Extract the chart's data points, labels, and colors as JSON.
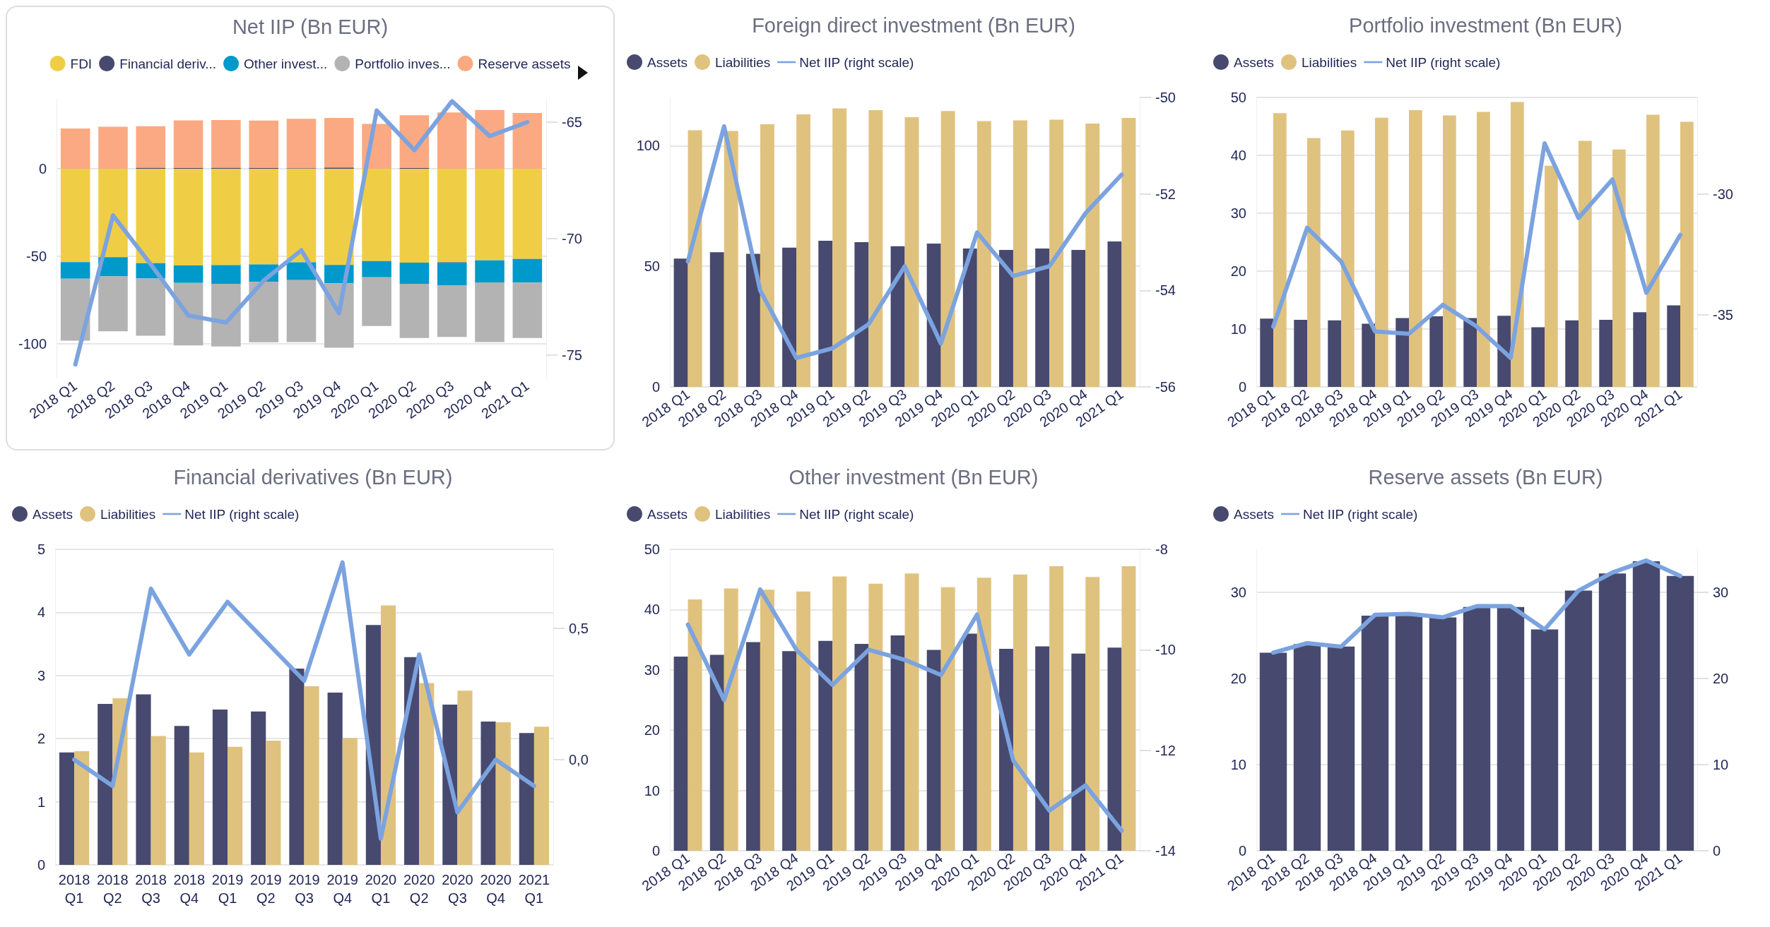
{
  "chart_data": [
    {
      "type": "bar",
      "title": "Net IIP (Bn EUR)",
      "stacked": true,
      "legend": "top",
      "grid": "y",
      "categories": [
        "2018 Q1",
        "2018 Q2",
        "2018 Q3",
        "2018 Q4",
        "2019 Q1",
        "2019 Q2",
        "2019 Q3",
        "2019 Q4",
        "2020 Q1",
        "2020 Q2",
        "2020 Q3",
        "2020 Q4",
        "2021 Q1"
      ],
      "series": [
        {
          "name": "FDI",
          "color": "#efce45",
          "values": [
            -53.4,
            -50.6,
            -54.0,
            -55.4,
            -55.2,
            -54.7,
            -53.5,
            -55.1,
            -52.8,
            -53.7,
            -53.5,
            -52.4,
            -51.6
          ]
        },
        {
          "name": "Financial deriv...",
          "color": "#474a6e",
          "values": [
            0.0,
            null,
            0.65,
            0.4,
            0.6,
            0.45,
            0.3,
            0.75,
            null,
            0.4,
            -0.2,
            0.0,
            null
          ]
        },
        {
          "name": "Other invest...",
          "color": "#0099cc",
          "values": [
            -9.5,
            -11.0,
            -8.8,
            -10.0,
            -10.7,
            -10.0,
            -10.2,
            -10.5,
            -9.3,
            -12.2,
            -13.2,
            -12.7,
            -13.6
          ]
        },
        {
          "name": "Portfolio inves...",
          "color": "#b3b3b3",
          "values": [
            -35.5,
            -31.4,
            -32.8,
            -35.7,
            -35.8,
            -34.6,
            -35.5,
            -36.8,
            -27.9,
            -31.0,
            -29.4,
            -34.1,
            -31.7
          ]
        },
        {
          "name": "Reserve assets",
          "color": "#fba982",
          "values": [
            23.0,
            24.0,
            23.7,
            27.3,
            27.3,
            27.1,
            28.3,
            28.3,
            25.7,
            30.2,
            32.2,
            33.6,
            31.9
          ]
        },
        {
          "type": "line",
          "axis": "y2",
          "color": "#7ba3e0",
          "values": [
            -75.4,
            -69.0,
            -71.1,
            -73.3,
            -73.6,
            -71.8,
            -70.5,
            -73.2,
            -64.5,
            -66.2,
            -64.1,
            -65.6,
            -65.0
          ]
        }
      ],
      "ylim": [
        -120,
        40
      ],
      "yticks": [
        -100,
        -50,
        0
      ],
      "y2lim": [
        -76,
        -64
      ],
      "y2ticks": [
        -75,
        -70,
        -65
      ]
    },
    {
      "type": "bar",
      "title": "Foreign direct investment (Bn EUR)",
      "legend": "top left",
      "grid": "y",
      "categories": [
        "2018 Q1",
        "2018 Q2",
        "2018 Q3",
        "2018 Q4",
        "2019 Q1",
        "2019 Q2",
        "2019 Q3",
        "2019 Q4",
        "2020 Q1",
        "2020 Q2",
        "2020 Q3",
        "2020 Q4",
        "2021 Q1"
      ],
      "series": [
        {
          "name": "Assets",
          "color": "#474a6e",
          "values": [
            53.2,
            55.8,
            55.2,
            57.7,
            60.6,
            60.0,
            58.3,
            59.4,
            57.4,
            56.8,
            57.4,
            56.8,
            60.3
          ]
        },
        {
          "name": "Liabilities",
          "color": "#e0c27f",
          "values": [
            106.4,
            106.1,
            108.9,
            113.0,
            115.5,
            114.7,
            111.8,
            114.4,
            110.2,
            110.5,
            110.8,
            109.2,
            111.5
          ]
        },
        {
          "name": "Net IIP (right scale)",
          "type": "line",
          "axis": "y2",
          "color": "#7ba3e0",
          "values": [
            -53.4,
            -50.6,
            -54.0,
            -55.4,
            -55.2,
            -54.7,
            -53.5,
            -55.1,
            -52.8,
            -53.7,
            -53.5,
            -52.4,
            -51.6
          ]
        }
      ],
      "ylim": [
        0,
        120
      ],
      "yticks": [
        0,
        50,
        100
      ],
      "y2lim": [
        -56,
        -50
      ],
      "y2ticks": [
        -56,
        -54,
        -52,
        -50
      ]
    },
    {
      "type": "bar",
      "title": "Portfolio investment (Bn EUR)",
      "legend": "top left",
      "grid": "y",
      "categories": [
        "2018 Q1",
        "2018 Q2",
        "2018 Q3",
        "2018 Q4",
        "2019 Q1",
        "2019 Q2",
        "2019 Q3",
        "2019 Q4",
        "2020 Q1",
        "2020 Q2",
        "2020 Q3",
        "2020 Q4",
        "2021 Q1"
      ],
      "series": [
        {
          "name": "Assets",
          "color": "#474a6e",
          "values": [
            11.8,
            11.6,
            11.5,
            10.9,
            11.9,
            12.2,
            11.9,
            12.3,
            10.3,
            11.5,
            11.6,
            12.9,
            14.1
          ]
        },
        {
          "name": "Liabilities",
          "color": "#e0c27f",
          "values": [
            47.3,
            43.0,
            44.3,
            46.5,
            47.8,
            46.9,
            47.5,
            49.2,
            38.2,
            42.5,
            41.0,
            47.0,
            45.8
          ]
        },
        {
          "name": "Net IIP (right scale)",
          "type": "line",
          "axis": "y2",
          "color": "#7ba3e0",
          "values": [
            -35.5,
            -31.4,
            -32.8,
            -35.7,
            -35.8,
            -34.6,
            -35.5,
            -36.8,
            -27.9,
            -31.0,
            -29.4,
            -34.1,
            -31.7
          ]
        }
      ],
      "ylim": [
        0,
        50
      ],
      "yticks": [
        0,
        10,
        20,
        30,
        40,
        50
      ],
      "y2lim": [
        -38,
        -26
      ],
      "y2ticks": [
        -35,
        -30
      ]
    },
    {
      "type": "bar",
      "title": "Financial derivatives (Bn EUR)",
      "legend": "top left",
      "grid": "y",
      "categories": [
        "2018 Q1",
        "2018 Q2",
        "2018 Q3",
        "2018 Q4",
        "2019 Q1",
        "2019 Q2",
        "2019 Q3",
        "2019 Q4",
        "2020 Q1",
        "2020 Q2",
        "2020 Q3",
        "2020 Q4",
        "2021 Q1"
      ],
      "series": [
        {
          "name": "Assets",
          "color": "#474a6e",
          "values": [
            1.78,
            2.55,
            2.7,
            2.2,
            2.46,
            2.43,
            3.11,
            2.73,
            3.8,
            3.29,
            2.54,
            2.27,
            2.09
          ]
        },
        {
          "name": "Liabilities",
          "color": "#e0c27f",
          "values": [
            1.8,
            2.64,
            2.04,
            1.78,
            1.87,
            1.97,
            2.83,
            2.01,
            4.11,
            2.88,
            2.76,
            2.26,
            2.19
          ]
        },
        {
          "name": "Net IIP (right scale)",
          "type": "line",
          "axis": "y2",
          "color": "#7ba3e0",
          "values": [
            0.0,
            -0.1,
            0.65,
            0.4,
            0.6,
            0.45,
            0.3,
            0.75,
            -0.3,
            0.4,
            -0.2,
            0.0,
            -0.1
          ]
        }
      ],
      "ylim": [
        0,
        5
      ],
      "yticks": [
        0,
        1,
        2,
        3,
        4,
        5
      ],
      "y2lim": [
        -0.4,
        0.8
      ],
      "y2ticks": [
        {
          "value": 0,
          "label": "0,0"
        },
        {
          "value": 0.5,
          "label": "0,5"
        }
      ]
    },
    {
      "type": "bar",
      "title": "Other investment (Bn EUR)",
      "legend": "top left",
      "grid": "y",
      "categories": [
        "2018 Q1",
        "2018 Q2",
        "2018 Q3",
        "2018 Q4",
        "2019 Q1",
        "2019 Q2",
        "2019 Q3",
        "2019 Q4",
        "2020 Q1",
        "2020 Q2",
        "2020 Q3",
        "2020 Q4",
        "2021 Q1"
      ],
      "series": [
        {
          "name": "Assets",
          "color": "#474a6e",
          "values": [
            32.2,
            32.5,
            34.6,
            33.1,
            34.8,
            34.3,
            35.7,
            33.3,
            36.0,
            33.5,
            33.9,
            32.7,
            33.7
          ]
        },
        {
          "name": "Liabilities",
          "color": "#e0c27f",
          "values": [
            41.7,
            43.5,
            43.3,
            43.0,
            45.5,
            44.3,
            46.0,
            43.7,
            45.3,
            45.8,
            47.2,
            45.4,
            47.2
          ]
        },
        {
          "name": "Net IIP (right scale)",
          "type": "line",
          "axis": "y2",
          "color": "#7ba3e0",
          "values": [
            -9.5,
            -11.0,
            -8.8,
            -10.0,
            -10.7,
            -10.0,
            -10.2,
            -10.5,
            -9.3,
            -12.2,
            -13.2,
            -12.7,
            -13.6
          ]
        }
      ],
      "ylim": [
        0,
        50
      ],
      "yticks": [
        0,
        10,
        20,
        30,
        40,
        50
      ],
      "y2lim": [
        -14,
        -8
      ],
      "y2ticks": [
        -14,
        -12,
        -10,
        -8
      ]
    },
    {
      "type": "bar",
      "title": "Reserve assets (Bn EUR)",
      "legend": "top left",
      "grid": "y",
      "categories": [
        "2018 Q1",
        "2018 Q2",
        "2018 Q3",
        "2018 Q4",
        "2019 Q1",
        "2019 Q2",
        "2019 Q3",
        "2019 Q4",
        "2020 Q1",
        "2020 Q2",
        "2020 Q3",
        "2020 Q4",
        "2021 Q1"
      ],
      "series": [
        {
          "name": "Assets",
          "color": "#474a6e",
          "values": [
            23.0,
            24.0,
            23.7,
            27.3,
            27.3,
            27.1,
            28.3,
            28.3,
            25.7,
            30.2,
            32.2,
            33.6,
            31.9
          ]
        },
        {
          "name": "Net IIP (right scale)",
          "type": "line",
          "axis": "y2",
          "color": "#7ba3e0",
          "values": [
            23.0,
            24.1,
            23.7,
            27.4,
            27.5,
            27.1,
            28.4,
            28.4,
            25.7,
            30.2,
            32.3,
            33.7,
            31.9
          ]
        }
      ],
      "ylim": [
        0,
        35
      ],
      "yticks": [
        0,
        10,
        20,
        30
      ],
      "y2lim": [
        0,
        35
      ],
      "y2ticks": [
        0,
        10,
        20,
        30
      ]
    }
  ]
}
